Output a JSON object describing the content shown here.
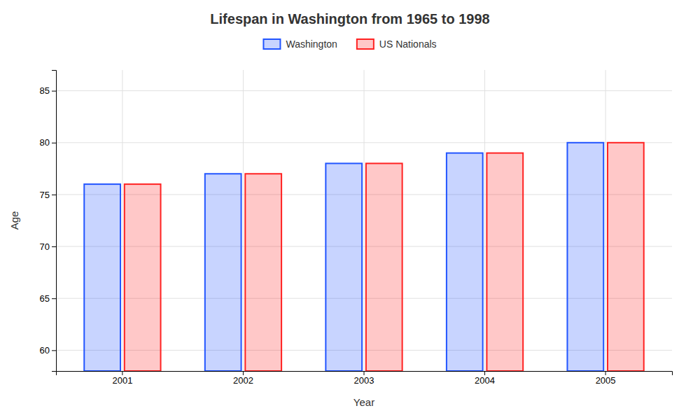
{
  "chart_data": {
    "type": "bar",
    "title": "Lifespan in Washington from 1965 to 1998",
    "x_label": "Year",
    "y_label": "Age",
    "categories": [
      "2001",
      "2002",
      "2003",
      "2004",
      "2005"
    ],
    "series": [
      {
        "name": "Washington",
        "color": "#2255ff",
        "values": [
          76,
          77,
          78,
          79,
          80
        ]
      },
      {
        "name": "US Nationals",
        "color": "#ff2222",
        "values": [
          76,
          77,
          78,
          79,
          80
        ]
      }
    ],
    "ylim": [
      58,
      87
    ],
    "yticks": [
      60,
      65,
      70,
      75,
      80,
      85
    ],
    "grid": true,
    "legend": "top"
  }
}
